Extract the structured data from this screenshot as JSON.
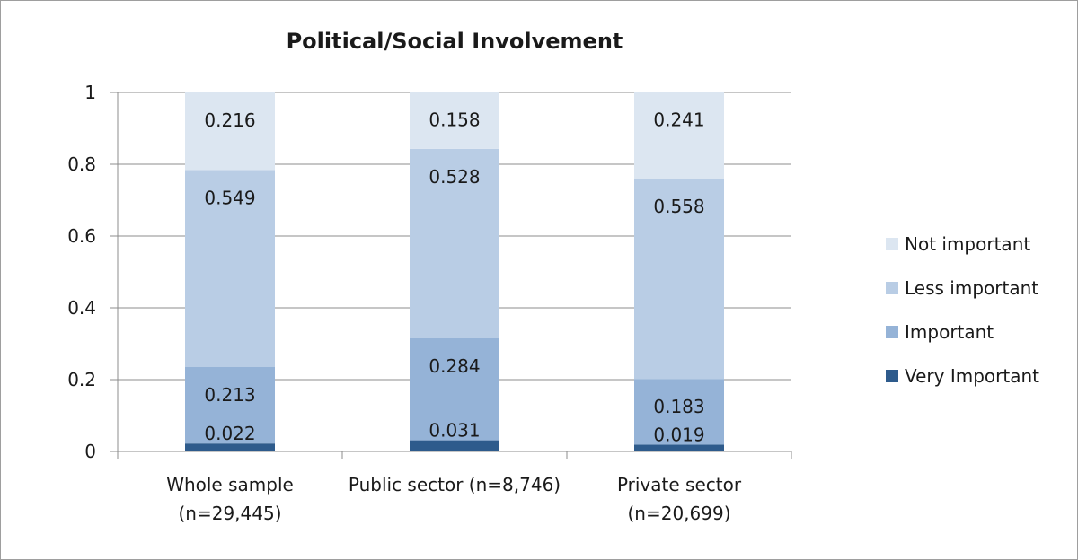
{
  "chart_data": {
    "type": "bar",
    "stacked": true,
    "title": "Political/Social Involvement",
    "xlabel": "",
    "ylabel": "",
    "ylim": [
      0,
      1
    ],
    "yticks": [
      "0",
      "0.2",
      "0.4",
      "0.6",
      "0.8",
      "1"
    ],
    "grid": true,
    "legend_position": "right",
    "categories": [
      [
        "Whole sample",
        "(n=29,445)"
      ],
      [
        "Public sector (n=8,746)"
      ],
      [
        "Private sector",
        "(n=20,699)"
      ]
    ],
    "series": [
      {
        "name": "Very Important",
        "values": [
          0.022,
          0.031,
          0.019
        ],
        "labels": [
          "0.022",
          "0.031",
          "0.019"
        ],
        "color": "#2e5b8c"
      },
      {
        "name": "Important",
        "values": [
          0.213,
          0.284,
          0.183
        ],
        "labels": [
          "0.213",
          "0.284",
          "0.183"
        ],
        "color": "#95b3d7"
      },
      {
        "name": "Less important",
        "values": [
          0.549,
          0.528,
          0.558
        ],
        "labels": [
          "0.549",
          "0.528",
          "0.558"
        ],
        "color": "#b9cde5"
      },
      {
        "name": "Not important",
        "values": [
          0.216,
          0.158,
          0.241
        ],
        "labels": [
          "0.216",
          "0.158",
          "0.241"
        ],
        "color": "#dce6f1"
      }
    ],
    "legend_order": [
      "Not important",
      "Less important",
      "Important",
      "Very Important"
    ]
  }
}
